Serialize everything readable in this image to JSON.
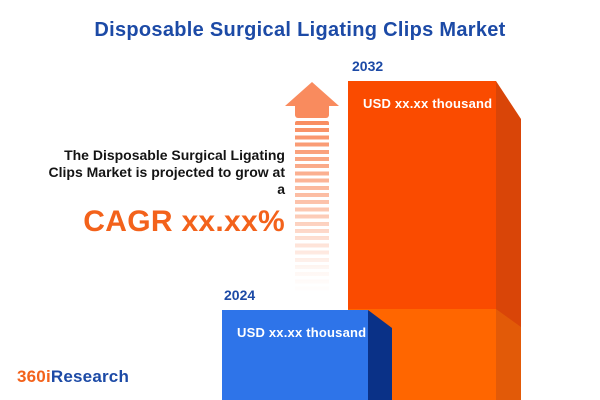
{
  "title": "Disposable Surgical Ligating Clips Market",
  "projection": {
    "line1": "The Disposable Surgical Ligating",
    "line2": "Clips Market is projected to grow at",
    "line3": "a",
    "cagr": "CAGR xx.xx%"
  },
  "logo": {
    "brand_orange": "360i",
    "brand_blue": "Research"
  },
  "colors": {
    "title_blue": "#1c4aa6",
    "cagr_orange": "#f3621b",
    "bar_2032_front": "#fa4b00",
    "bar_2032_side": "#d94508",
    "bar_2024_overlay_front": "#ff6600",
    "bar_2024_overlay_side": "#e25a08",
    "bar_2024_front": "#2e74e9",
    "bar_2024_side": "#0a3187",
    "arrow_orange": "#f98b5e"
  },
  "chart_data": {
    "type": "bar",
    "title": "Disposable Surgical Ligating Clips Market",
    "categories": [
      "2024",
      "2032"
    ],
    "values": [
      null,
      null
    ],
    "value_labels": [
      "USD xx.xx thousand",
      "USD xx.xx thousand"
    ],
    "annotation": "CAGR xx.xx%",
    "ylabel": "",
    "xlabel": "",
    "legend": false,
    "grid": false,
    "series_colors": [
      "#2e74e9",
      "#fa4b00"
    ]
  }
}
